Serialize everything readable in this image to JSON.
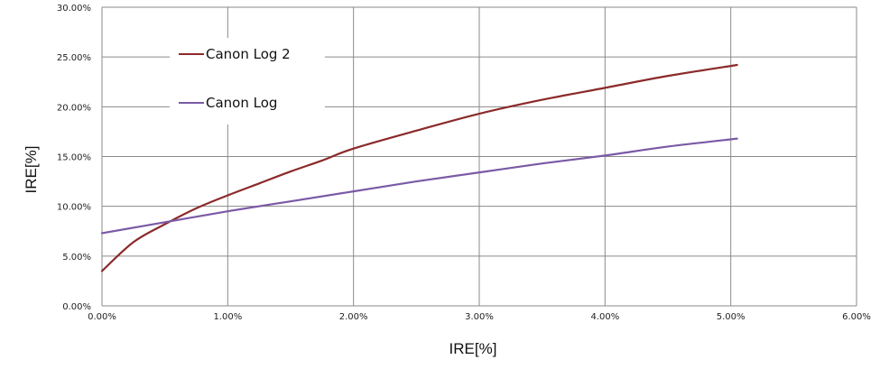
{
  "chart_data": {
    "type": "line",
    "title": "",
    "xlabel": "IRE[%]",
    "ylabel": "IRE[%]",
    "xlim": [
      0,
      6
    ],
    "ylim": [
      0,
      30
    ],
    "x_ticks": [
      0,
      1,
      2,
      3,
      4,
      5,
      6
    ],
    "y_ticks": [
      0,
      5,
      10,
      15,
      20,
      25,
      30
    ],
    "x_tick_labels": [
      "0.00%",
      "1.00%",
      "2.00%",
      "3.00%",
      "4.00%",
      "5.00%",
      "6.00%"
    ],
    "y_tick_labels": [
      "0.00%",
      "5.00%",
      "10.00%",
      "15.00%",
      "20.00%",
      "25.00%",
      "30.00%"
    ],
    "grid": true,
    "legend_position": "top-left",
    "series": [
      {
        "name": "Canon Log 2",
        "color": "#8b2a2a",
        "x": [
          0,
          0.25,
          0.5,
          0.75,
          1.0,
          1.25,
          1.5,
          1.75,
          2.0,
          2.5,
          3.0,
          3.5,
          4.0,
          4.5,
          5.05
        ],
        "y": [
          3.5,
          6.4,
          8.2,
          9.8,
          11.1,
          12.3,
          13.5,
          14.6,
          15.8,
          17.6,
          19.3,
          20.7,
          21.9,
          23.1,
          24.2
        ]
      },
      {
        "name": "Canon Log",
        "color": "#7a5aa6",
        "x": [
          0,
          0.5,
          1.0,
          1.5,
          2.0,
          2.5,
          3.0,
          3.5,
          4.0,
          4.5,
          5.05
        ],
        "y": [
          7.3,
          8.4,
          9.5,
          10.5,
          11.5,
          12.5,
          13.4,
          14.3,
          15.1,
          16.0,
          16.8
        ]
      }
    ]
  }
}
